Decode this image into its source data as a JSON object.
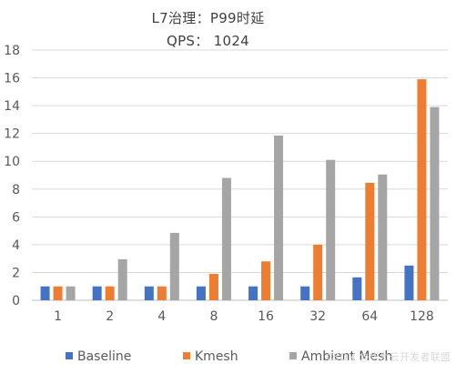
{
  "chart_data": {
    "type": "bar",
    "title": "L7治理：P99时延",
    "subtitle": "QPS：  1024",
    "xlabel": "",
    "ylabel": "",
    "categories": [
      "1",
      "2",
      "4",
      "8",
      "16",
      "32",
      "64",
      "128"
    ],
    "ylim": [
      0,
      18
    ],
    "yticks": [
      0,
      2,
      4,
      6,
      8,
      10,
      12,
      14,
      16,
      18
    ],
    "grid": true,
    "legend_position": "bottom",
    "series": [
      {
        "name": "Baseline",
        "color": "#4472C4",
        "values": [
          1.0,
          1.0,
          1.0,
          1.0,
          1.0,
          1.0,
          1.65,
          2.5
        ]
      },
      {
        "name": "Kmesh",
        "color": "#ED7D31",
        "values": [
          1.0,
          1.0,
          1.0,
          1.9,
          2.8,
          4.0,
          8.45,
          15.9
        ]
      },
      {
        "name": "Ambient Mesh",
        "color": "#A5A5A5",
        "values": [
          1.0,
          2.95,
          4.85,
          8.8,
          11.85,
          10.1,
          9.05,
          13.9
        ]
      }
    ]
  },
  "watermark": "CSDN @华为云开发者联盟"
}
